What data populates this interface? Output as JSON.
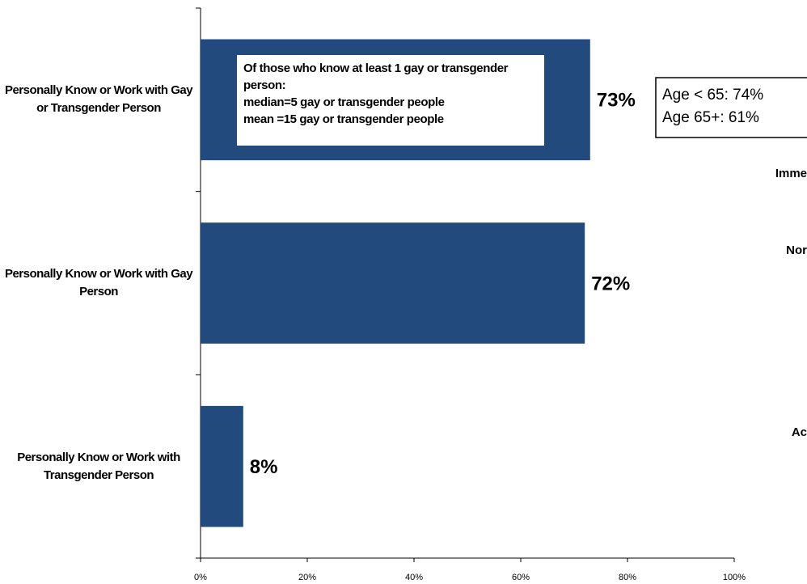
{
  "chart_data": {
    "type": "bar",
    "orientation": "horizontal",
    "categories": [
      "Personally Know or Work with Gay or Transgender Person",
      "Personally Know or Work with Gay Person",
      "Personally Know or Work with Transgender Person"
    ],
    "values": [
      73,
      72,
      8
    ],
    "value_labels": [
      "73%",
      "72%",
      "8%"
    ],
    "color": "#234a7c",
    "xlim": [
      0,
      100
    ],
    "xticks": [
      {
        "value": 0,
        "label": "0%"
      },
      {
        "value": 20,
        "label": "20%"
      },
      {
        "value": 40,
        "label": "40%"
      },
      {
        "value": 60,
        "label": "60%"
      },
      {
        "value": 80,
        "label": "80%"
      },
      {
        "value": 100,
        "label": "100%"
      }
    ],
    "grid": false,
    "annotations": {
      "inner_box": [
        "Of those who know at least 1 gay or transgender person:",
        "median=5 gay or transgender people",
        "mean =15 gay or transgender people"
      ],
      "age_box": [
        "Age < 65: 74%",
        "Age 65+:  61%"
      ],
      "cropped": [
        "Imme",
        "Nor",
        "Ac"
      ]
    }
  }
}
